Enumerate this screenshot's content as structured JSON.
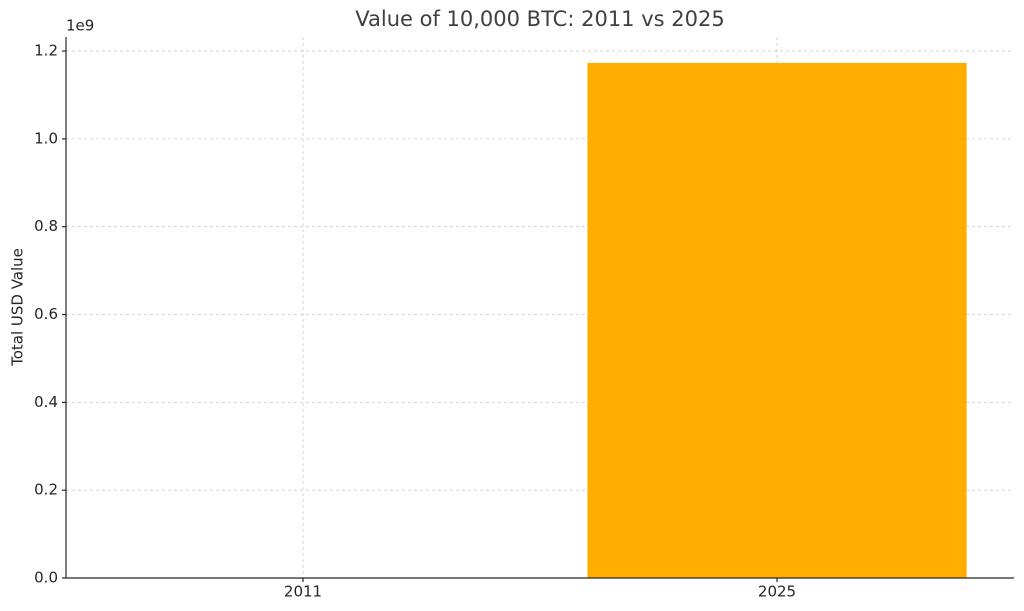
{
  "chart_data": {
    "type": "bar",
    "title": "Value of 10,000 BTC: 2011 vs 2025",
    "y_label": "Total USD Value",
    "y_offset_label": "1e9",
    "categories": [
      "2011",
      "2025"
    ],
    "values": [
      0,
      1173000000
    ],
    "color": "#ffae00",
    "ylim": [
      0,
      1232000000
    ],
    "yticks": [
      {
        "value": 0,
        "label": "0.0"
      },
      {
        "value": 200000000,
        "label": "0.2"
      },
      {
        "value": 400000000,
        "label": "0.4"
      },
      {
        "value": 600000000,
        "label": "0.6"
      },
      {
        "value": 800000000,
        "label": "0.8"
      },
      {
        "value": 1000000000,
        "label": "1.0"
      },
      {
        "value": 1200000000,
        "label": "1.2"
      }
    ],
    "grid": true
  }
}
